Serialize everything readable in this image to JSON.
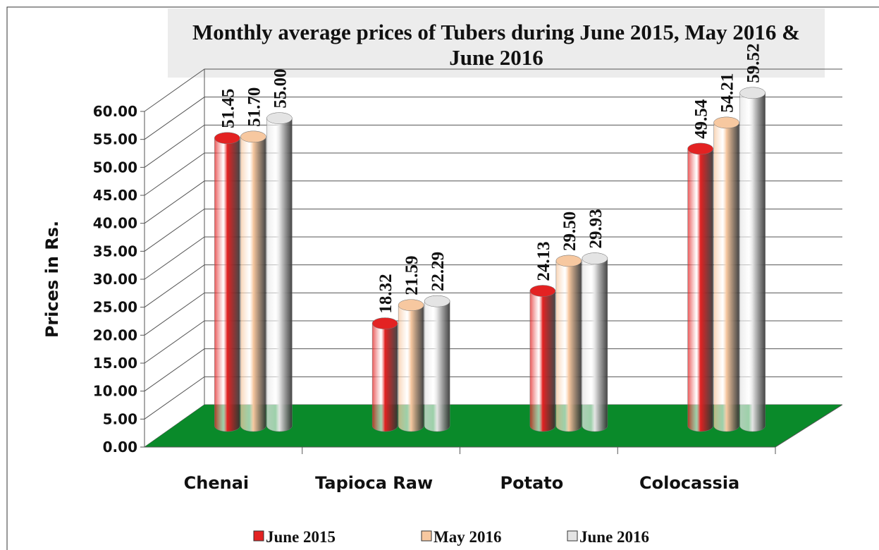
{
  "chart_data": {
    "type": "bar3d",
    "title": "Monthly average prices of Tubers during  June 2015, May 2016 & June 2016",
    "y_label": "Prices in Rs.",
    "categories": [
      "Chenai",
      "Tapioca Raw",
      "Potato",
      "Colocassia"
    ],
    "series": [
      {
        "name": "June 2015",
        "color": "#e32222",
        "values": [
          51.45,
          18.32,
          24.13,
          49.54
        ],
        "value_labels": [
          "51.45",
          "18.32",
          "24.13",
          "49.54"
        ]
      },
      {
        "name": "May 2016",
        "color": "#f7c8a0",
        "values": [
          51.7,
          21.59,
          29.5,
          54.21
        ],
        "value_labels": [
          "51.70",
          "21.59",
          "29.50",
          "54.21"
        ]
      },
      {
        "name": "June 2016",
        "color": "#e4e4e4",
        "values": [
          55,
          22.29,
          29.93,
          59.52
        ],
        "value_labels": [
          "55.00",
          "22.29",
          "29.93",
          "59.52"
        ]
      }
    ],
    "ylim": [
      0,
      60
    ],
    "yticks": [
      {
        "value": 0,
        "label": "0.00"
      },
      {
        "value": 5,
        "label": "5.00"
      },
      {
        "value": 10,
        "label": "10.00"
      },
      {
        "value": 15,
        "label": "15.00"
      },
      {
        "value": 20,
        "label": "20.00"
      },
      {
        "value": 25,
        "label": "25.00"
      },
      {
        "value": 30,
        "label": "30.00"
      },
      {
        "value": 35,
        "label": "35.00"
      },
      {
        "value": 40,
        "label": "40.00"
      },
      {
        "value": 45,
        "label": "45.00"
      },
      {
        "value": 50,
        "label": "50.00"
      },
      {
        "value": 55,
        "label": "55.00"
      },
      {
        "value": 60,
        "label": "60.00"
      }
    ],
    "grid": true,
    "floor_color": "#0a8a2a",
    "legend": "bottom"
  }
}
